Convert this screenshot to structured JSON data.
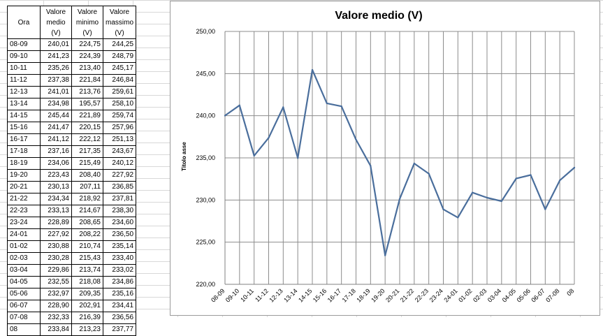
{
  "table": {
    "headers": [
      [
        "Ora"
      ],
      [
        "Valore",
        "medio",
        "(V)"
      ],
      [
        "Valore",
        "minimo",
        "(V)"
      ],
      [
        "Valore",
        "massimo",
        "(V)"
      ]
    ],
    "rows": [
      [
        "08-09",
        "240,01",
        "224,75",
        "244,25"
      ],
      [
        "09-10",
        "241,23",
        "224,39",
        "248,79"
      ],
      [
        "10-11",
        "235,26",
        "213,40",
        "245,17"
      ],
      [
        "11-12",
        "237,38",
        "221,84",
        "246,84"
      ],
      [
        "12-13",
        "241,01",
        "213,76",
        "259,61"
      ],
      [
        "13-14",
        "234,98",
        "195,57",
        "258,10"
      ],
      [
        "14-15",
        "245,44",
        "221,89",
        "259,74"
      ],
      [
        "15-16",
        "241,47",
        "220,15",
        "257,96"
      ],
      [
        "16-17",
        "241,12",
        "222,12",
        "251,13"
      ],
      [
        "17-18",
        "237,16",
        "217,35",
        "243,67"
      ],
      [
        "18-19",
        "234,06",
        "215,49",
        "240,12"
      ],
      [
        "19-20",
        "223,43",
        "208,40",
        "227,92"
      ],
      [
        "20-21",
        "230,13",
        "207,11",
        "236,85"
      ],
      [
        "21-22",
        "234,34",
        "218,92",
        "237,81"
      ],
      [
        "22-23",
        "233,13",
        "214,67",
        "238,30"
      ],
      [
        "23-24",
        "228,89",
        "208,65",
        "234,60"
      ],
      [
        "24-01",
        "227,92",
        "208,22",
        "236,50"
      ],
      [
        "01-02",
        "230,88",
        "210,74",
        "235,14"
      ],
      [
        "02-03",
        "230,28",
        "215,43",
        "233,40"
      ],
      [
        "03-04",
        "229,86",
        "213,74",
        "233,02"
      ],
      [
        "04-05",
        "232,55",
        "218,08",
        "234,86"
      ],
      [
        "05-06",
        "232,97",
        "209,35",
        "235,16"
      ],
      [
        "06-07",
        "228,90",
        "202,91",
        "234,41"
      ],
      [
        "07-08",
        "232,33",
        "216,39",
        "236,56"
      ],
      [
        "08",
        "233,84",
        "213,23",
        "237,77"
      ]
    ]
  },
  "chart_data": {
    "type": "line",
    "title": "Valore medio (V)",
    "xlabel": "",
    "ylabel": "Titolo asse",
    "categories": [
      "08-09",
      "09-10",
      "10-11",
      "11-12",
      "12-13",
      "13-14",
      "14-15",
      "15-16",
      "16-17",
      "17-18",
      "18-19",
      "19-20",
      "20-21",
      "21-22",
      "22-23",
      "23-24",
      "24-01",
      "01-02",
      "02-03",
      "03-04",
      "04-05",
      "05-06",
      "06-07",
      "07-08",
      "08"
    ],
    "series": [
      {
        "values": [
          240.01,
          241.23,
          235.26,
          237.38,
          241.01,
          234.98,
          245.44,
          241.47,
          241.12,
          237.16,
          234.06,
          223.43,
          230.13,
          234.34,
          233.13,
          228.89,
          227.92,
          230.88,
          230.28,
          229.86,
          232.55,
          232.97,
          228.9,
          232.33,
          233.84
        ]
      }
    ],
    "ylim": [
      220,
      250
    ],
    "yticks": [
      220,
      225,
      230,
      235,
      240,
      245,
      250
    ],
    "ytick_labels": [
      "220,00",
      "225,00",
      "230,00",
      "235,00",
      "240,00",
      "245,00",
      "250,00"
    ],
    "grid": true,
    "line_color": "#4a6e9c"
  }
}
